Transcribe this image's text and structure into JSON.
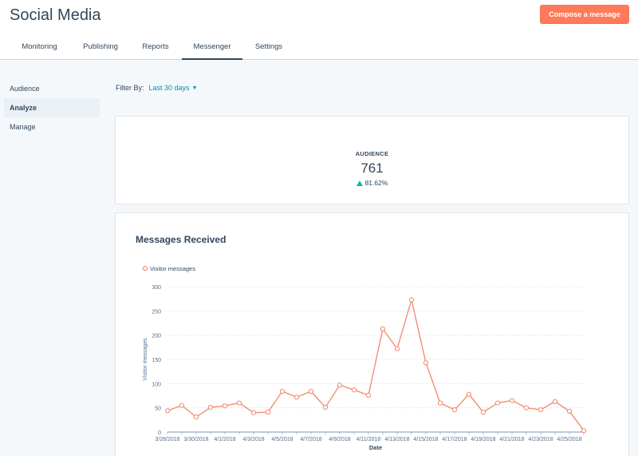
{
  "header": {
    "title": "Social Media",
    "compose_label": "Compose a message"
  },
  "tabs": [
    "Monitoring",
    "Publishing",
    "Reports",
    "Messenger",
    "Settings"
  ],
  "active_tab": "Messenger",
  "sidebar": {
    "items": [
      "Audience",
      "Analyze",
      "Manage"
    ],
    "active": "Analyze"
  },
  "filter": {
    "label": "Filter By:",
    "value": "Last 30 days"
  },
  "audience": {
    "label": "AUDIENCE",
    "value": "761",
    "change": "81.62%",
    "change_direction": "up",
    "up_color": "#00bda5"
  },
  "chart": {
    "title": "Messages Received"
  },
  "colors": {
    "accent": "#ff7a59",
    "line": "#f2866a",
    "link": "#0091ae",
    "text": "#33475b"
  },
  "chart_data": {
    "type": "line",
    "title": "Messages Received",
    "xlabel": "Date",
    "ylabel": "Visitor messages",
    "legend": "top-left",
    "grid": true,
    "ylim": [
      0,
      300
    ],
    "yticks": [
      0,
      50,
      100,
      150,
      200,
      250,
      300
    ],
    "x": [
      "3/28/2018",
      "3/29/2018",
      "3/30/2018",
      "3/31/2018",
      "4/1/2018",
      "4/2/2018",
      "4/3/2018",
      "4/4/2018",
      "4/5/2018",
      "4/6/2018",
      "4/7/2018",
      "4/8/2018",
      "4/9/2018",
      "4/10/2018",
      "4/11/2018",
      "4/12/2018",
      "4/13/2018",
      "4/14/2018",
      "4/15/2018",
      "4/16/2018",
      "4/17/2018",
      "4/18/2018",
      "4/19/2018",
      "4/20/2018",
      "4/21/2018",
      "4/22/2018",
      "4/23/2018",
      "4/24/2018",
      "4/25/2018",
      "4/26/2018"
    ],
    "xticks": [
      "3/28/2018",
      "3/30/2018",
      "4/1/2018",
      "4/3/2018",
      "4/5/2018",
      "4/7/2018",
      "4/9/2018",
      "4/11/2018",
      "4/13/2018",
      "4/15/2018",
      "4/17/2018",
      "4/19/2018",
      "4/21/2018",
      "4/23/2018",
      "4/25/2018"
    ],
    "series": [
      {
        "name": "Visitor messages",
        "values": [
          44,
          55,
          31,
          51,
          54,
          60,
          40,
          41,
          84,
          72,
          84,
          51,
          97,
          87,
          76,
          213,
          172,
          273,
          143,
          60,
          46,
          78,
          41,
          60,
          65,
          50,
          46,
          63,
          43,
          3
        ]
      }
    ]
  }
}
